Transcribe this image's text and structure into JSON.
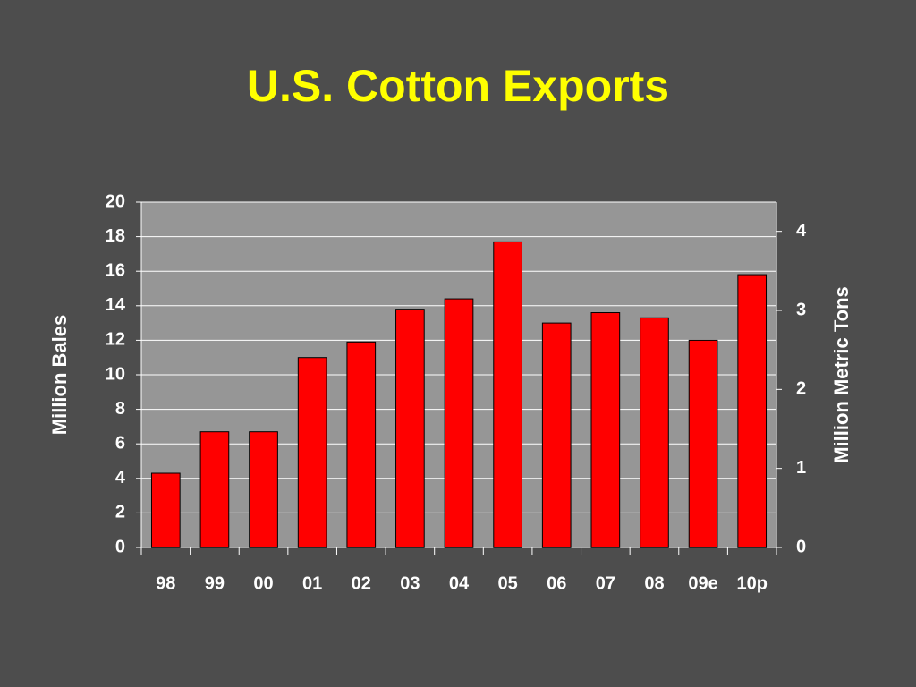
{
  "chart_data": {
    "type": "bar",
    "title": "U.S. Cotton Exports",
    "categories": [
      "98",
      "99",
      "00",
      "01",
      "02",
      "03",
      "04",
      "05",
      "06",
      "07",
      "08",
      "09e",
      "10p"
    ],
    "values": [
      4.3,
      6.7,
      6.7,
      11.0,
      11.9,
      13.8,
      14.4,
      17.7,
      13.0,
      13.6,
      13.3,
      12.0,
      15.8
    ],
    "color": "#ff0000",
    "ylabel": "Million Bales",
    "y2label": "Million Metric Tons",
    "ylim": [
      0,
      20
    ],
    "yticks": [
      0,
      2,
      4,
      6,
      8,
      10,
      12,
      14,
      16,
      18,
      20
    ],
    "y2lim": [
      0,
      4.37
    ],
    "y2ticks": [
      0,
      1,
      2,
      3,
      4
    ],
    "grid": true
  }
}
